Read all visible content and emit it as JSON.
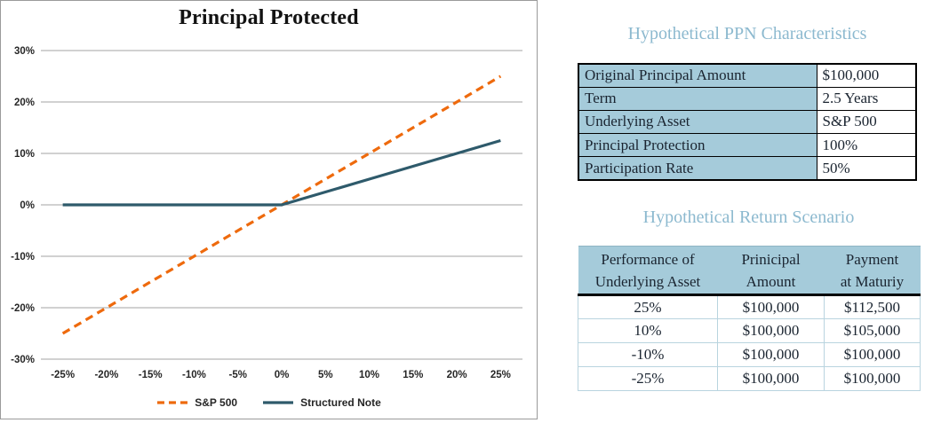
{
  "chart": {
    "title": "Principal Protected",
    "legend": [
      {
        "label": "S&P 500",
        "color": "#ee6a0d",
        "style": "dashed"
      },
      {
        "label": "Structured Note",
        "color": "#2e5a6b",
        "style": "solid"
      }
    ]
  },
  "chart_data": {
    "type": "line",
    "title": "Principal Protected",
    "x": [
      -25,
      -20,
      -15,
      -10,
      -5,
      0,
      5,
      10,
      15,
      20,
      25
    ],
    "x_tick_labels": [
      "-25%",
      "-20%",
      "-15%",
      "-10%",
      "-5%",
      "0%",
      "5%",
      "10%",
      "15%",
      "20%",
      "25%"
    ],
    "y_ticks": [
      30,
      20,
      10,
      0,
      -10,
      -20,
      -30
    ],
    "y_tick_labels": [
      "30%",
      "20%",
      "10%",
      "0%",
      "-10%",
      "-20%",
      "-30%"
    ],
    "ylim": [
      -30,
      30
    ],
    "grid": true,
    "legend_position": "bottom",
    "series": [
      {
        "name": "S&P 500",
        "color": "#ee6a0d",
        "dashed": true,
        "values": [
          -25,
          -20,
          -15,
          -10,
          -5,
          0,
          5,
          10,
          15,
          20,
          25
        ]
      },
      {
        "name": "Structured Note",
        "color": "#2e5a6b",
        "dashed": false,
        "values": [
          0,
          0,
          0,
          0,
          0,
          0,
          2.5,
          5,
          7.5,
          10,
          12.5
        ]
      }
    ]
  },
  "ppn_table": {
    "title": "Hypothetical PPN Characteristics",
    "rows": [
      {
        "label": "Original Principal Amount",
        "value": "$100,000"
      },
      {
        "label": "Term",
        "value": "2.5 Years"
      },
      {
        "label": "Underlying Asset",
        "value": "S&P 500"
      },
      {
        "label": "Principal Protection",
        "value": "100%"
      },
      {
        "label": "Participation Rate",
        "value": "50%"
      }
    ]
  },
  "scenario_table": {
    "title": "Hypothetical Return Scenario",
    "headers": [
      [
        "Performance of",
        "Underlying Asset"
      ],
      [
        "Prinicipal",
        "Amount"
      ],
      [
        "Payment",
        "at Maturiy"
      ]
    ],
    "rows": [
      [
        "25%",
        "$100,000",
        "$112,500"
      ],
      [
        "10%",
        "$100,000",
        "$105,000"
      ],
      [
        "-10%",
        "$100,000",
        "$100,000"
      ],
      [
        "-25%",
        "$100,000",
        "$100,000"
      ]
    ]
  },
  "colors": {
    "heading_blue": "#8cb9cf",
    "cell_blue": "#a5cbda",
    "sp500_orange": "#ee6a0d",
    "note_teal": "#2e5a6b",
    "gridline_gray": "#a3a3a3"
  }
}
